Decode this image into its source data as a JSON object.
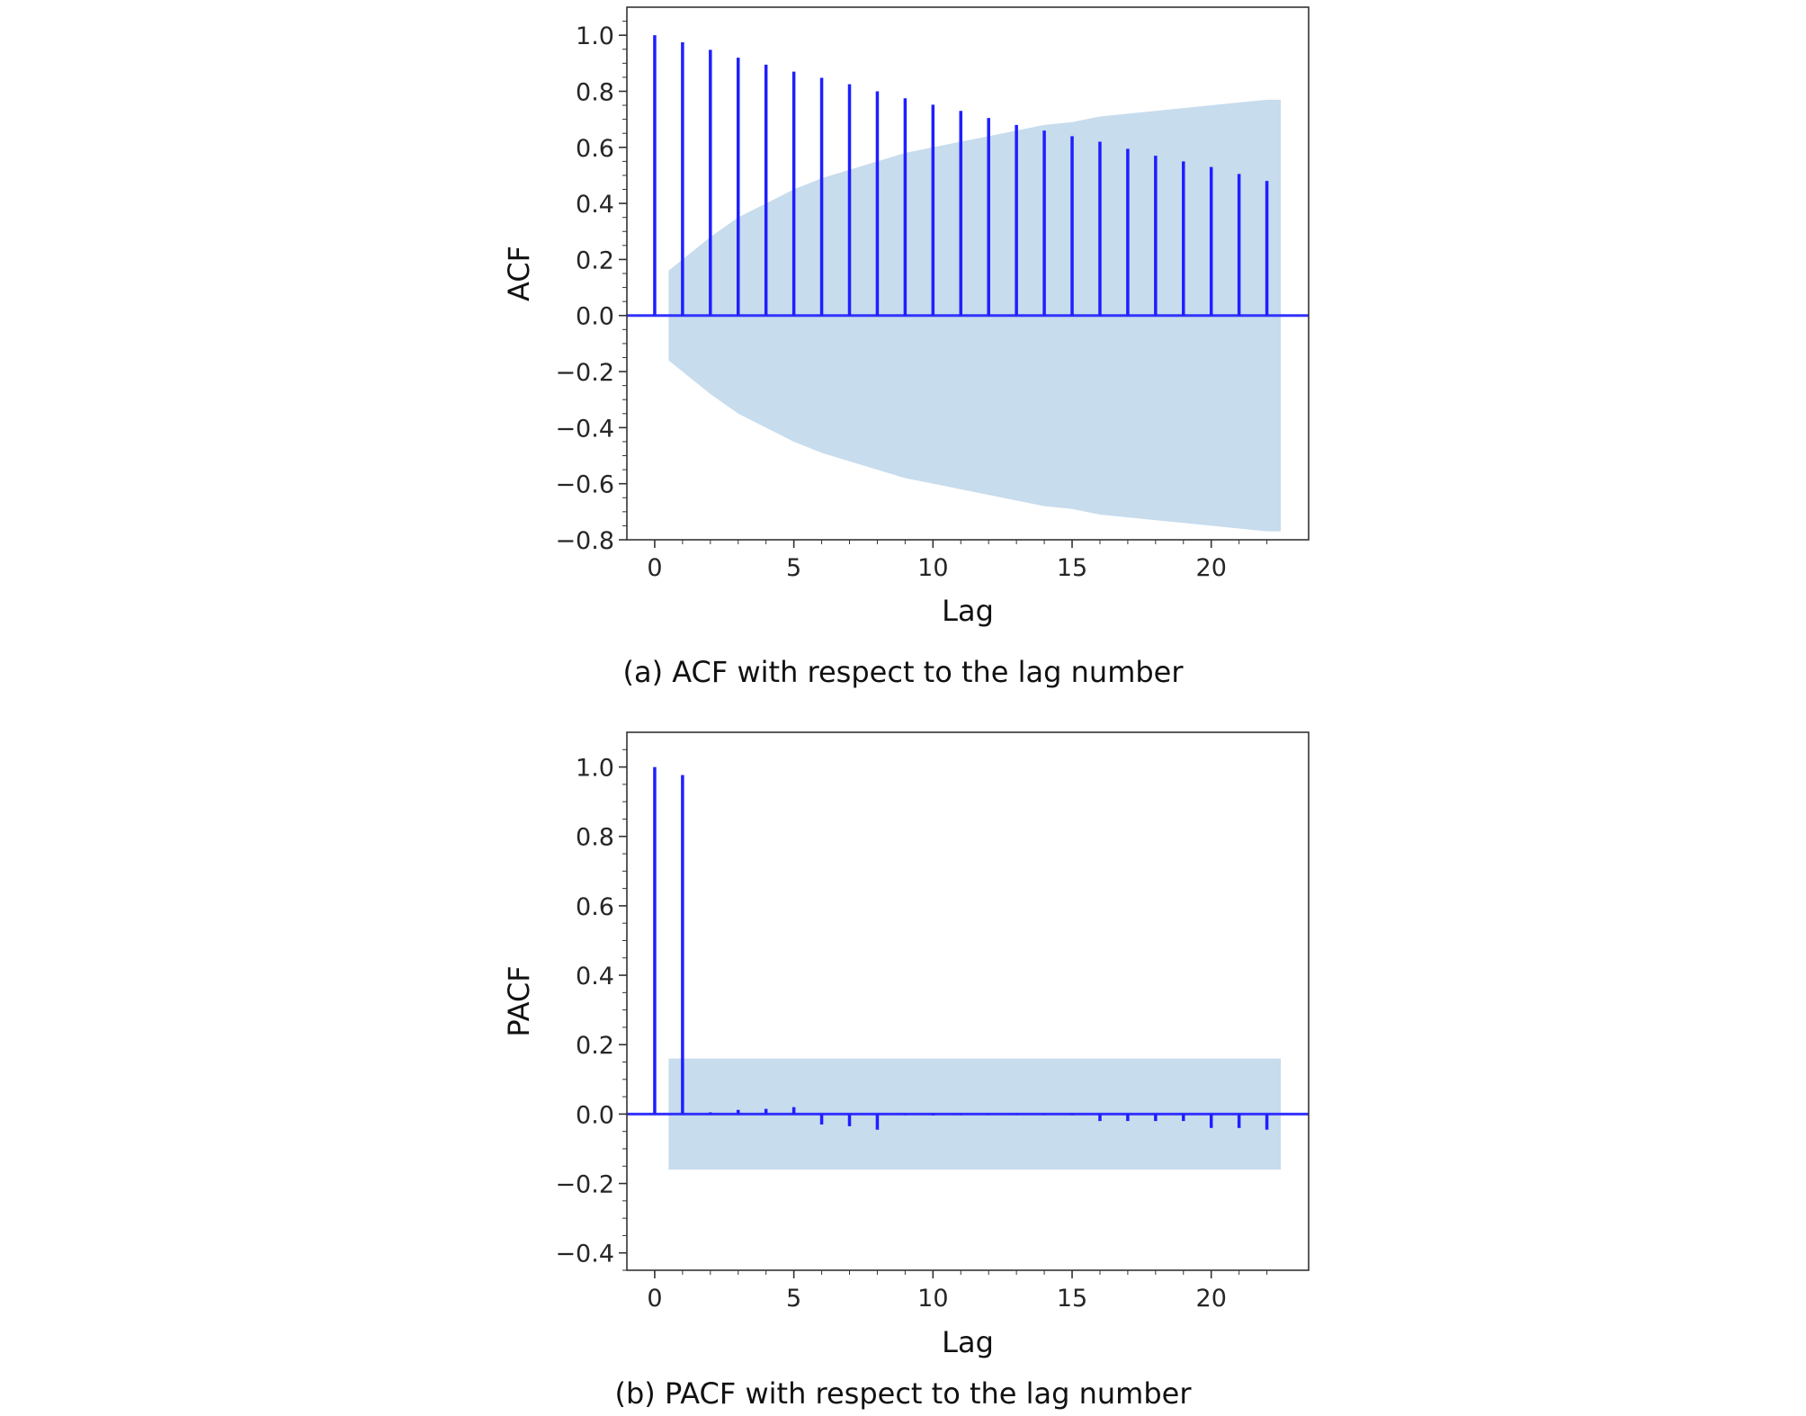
{
  "chart_data": [
    {
      "type": "stem",
      "caption": "(a) ACF with respect to the lag number",
      "xlabel": "Lag",
      "ylabel": "ACF",
      "xlim": [
        -1,
        23.5
      ],
      "ylim": [
        -0.8,
        1.1
      ],
      "xticks": [
        0,
        5,
        10,
        15,
        20
      ],
      "yticks": [
        -0.8,
        -0.6,
        -0.4,
        -0.2,
        0.0,
        0.2,
        0.4,
        0.6,
        0.8,
        1.0
      ],
      "ytick_labels": [
        "−0.8",
        "−0.6",
        "−0.4",
        "−0.2",
        "0.0",
        "0.2",
        "0.4",
        "0.6",
        "0.8",
        "1.0"
      ],
      "xtick_labels": [
        "0",
        "5",
        "10",
        "15",
        "20"
      ],
      "lags": [
        0,
        1,
        2,
        3,
        4,
        5,
        6,
        7,
        8,
        9,
        10,
        11,
        12,
        13,
        14,
        15,
        16,
        17,
        18,
        19,
        20,
        21,
        22
      ],
      "values": [
        1.0,
        0.975,
        0.948,
        0.92,
        0.895,
        0.87,
        0.848,
        0.825,
        0.8,
        0.775,
        0.752,
        0.73,
        0.705,
        0.68,
        0.66,
        0.64,
        0.62,
        0.595,
        0.57,
        0.55,
        0.53,
        0.505,
        0.48
      ],
      "confidence_band": {
        "lags": [
          0.5,
          1,
          2,
          3,
          4,
          5,
          6,
          7,
          8,
          9,
          10,
          11,
          12,
          13,
          14,
          15,
          16,
          17,
          18,
          19,
          20,
          21,
          22,
          22.5
        ],
        "upper": [
          0.16,
          0.2,
          0.28,
          0.35,
          0.4,
          0.45,
          0.49,
          0.52,
          0.55,
          0.58,
          0.6,
          0.62,
          0.64,
          0.66,
          0.68,
          0.69,
          0.71,
          0.72,
          0.73,
          0.74,
          0.75,
          0.76,
          0.77,
          0.77
        ]
      },
      "grid": false,
      "colors": {
        "stem": "#1f1fff",
        "band": "#a9c9e4",
        "baseline": "#3333ff"
      }
    },
    {
      "type": "stem",
      "caption": "(b) PACF with respect to the lag number",
      "xlabel": "Lag",
      "ylabel": "PACF",
      "xlim": [
        -1,
        23.5
      ],
      "ylim": [
        -0.45,
        1.1
      ],
      "xticks": [
        0,
        5,
        10,
        15,
        20
      ],
      "yticks": [
        -0.4,
        -0.2,
        0.0,
        0.2,
        0.4,
        0.6,
        0.8,
        1.0
      ],
      "ytick_labels": [
        "−0.4",
        "−0.2",
        "0.0",
        "0.2",
        "0.4",
        "0.6",
        "0.8",
        "1.0"
      ],
      "xtick_labels": [
        "0",
        "5",
        "10",
        "15",
        "20"
      ],
      "lags": [
        0,
        1,
        2,
        3,
        4,
        5,
        6,
        7,
        8,
        9,
        10,
        11,
        12,
        13,
        14,
        15,
        16,
        17,
        18,
        19,
        20,
        21,
        22
      ],
      "values": [
        1.0,
        0.977,
        0.005,
        0.012,
        0.015,
        0.02,
        -0.03,
        -0.035,
        -0.045,
        -0.003,
        -0.004,
        -0.003,
        -0.002,
        -0.002,
        -0.002,
        -0.003,
        -0.02,
        -0.02,
        -0.02,
        -0.02,
        -0.04,
        -0.04,
        -0.045
      ],
      "confidence_band": {
        "lags": [
          0.5,
          22.5
        ],
        "upper": [
          0.16,
          0.16
        ]
      },
      "grid": false,
      "colors": {
        "stem": "#1f1fff",
        "band": "#a9c9e4",
        "baseline": "#3333ff"
      }
    }
  ]
}
